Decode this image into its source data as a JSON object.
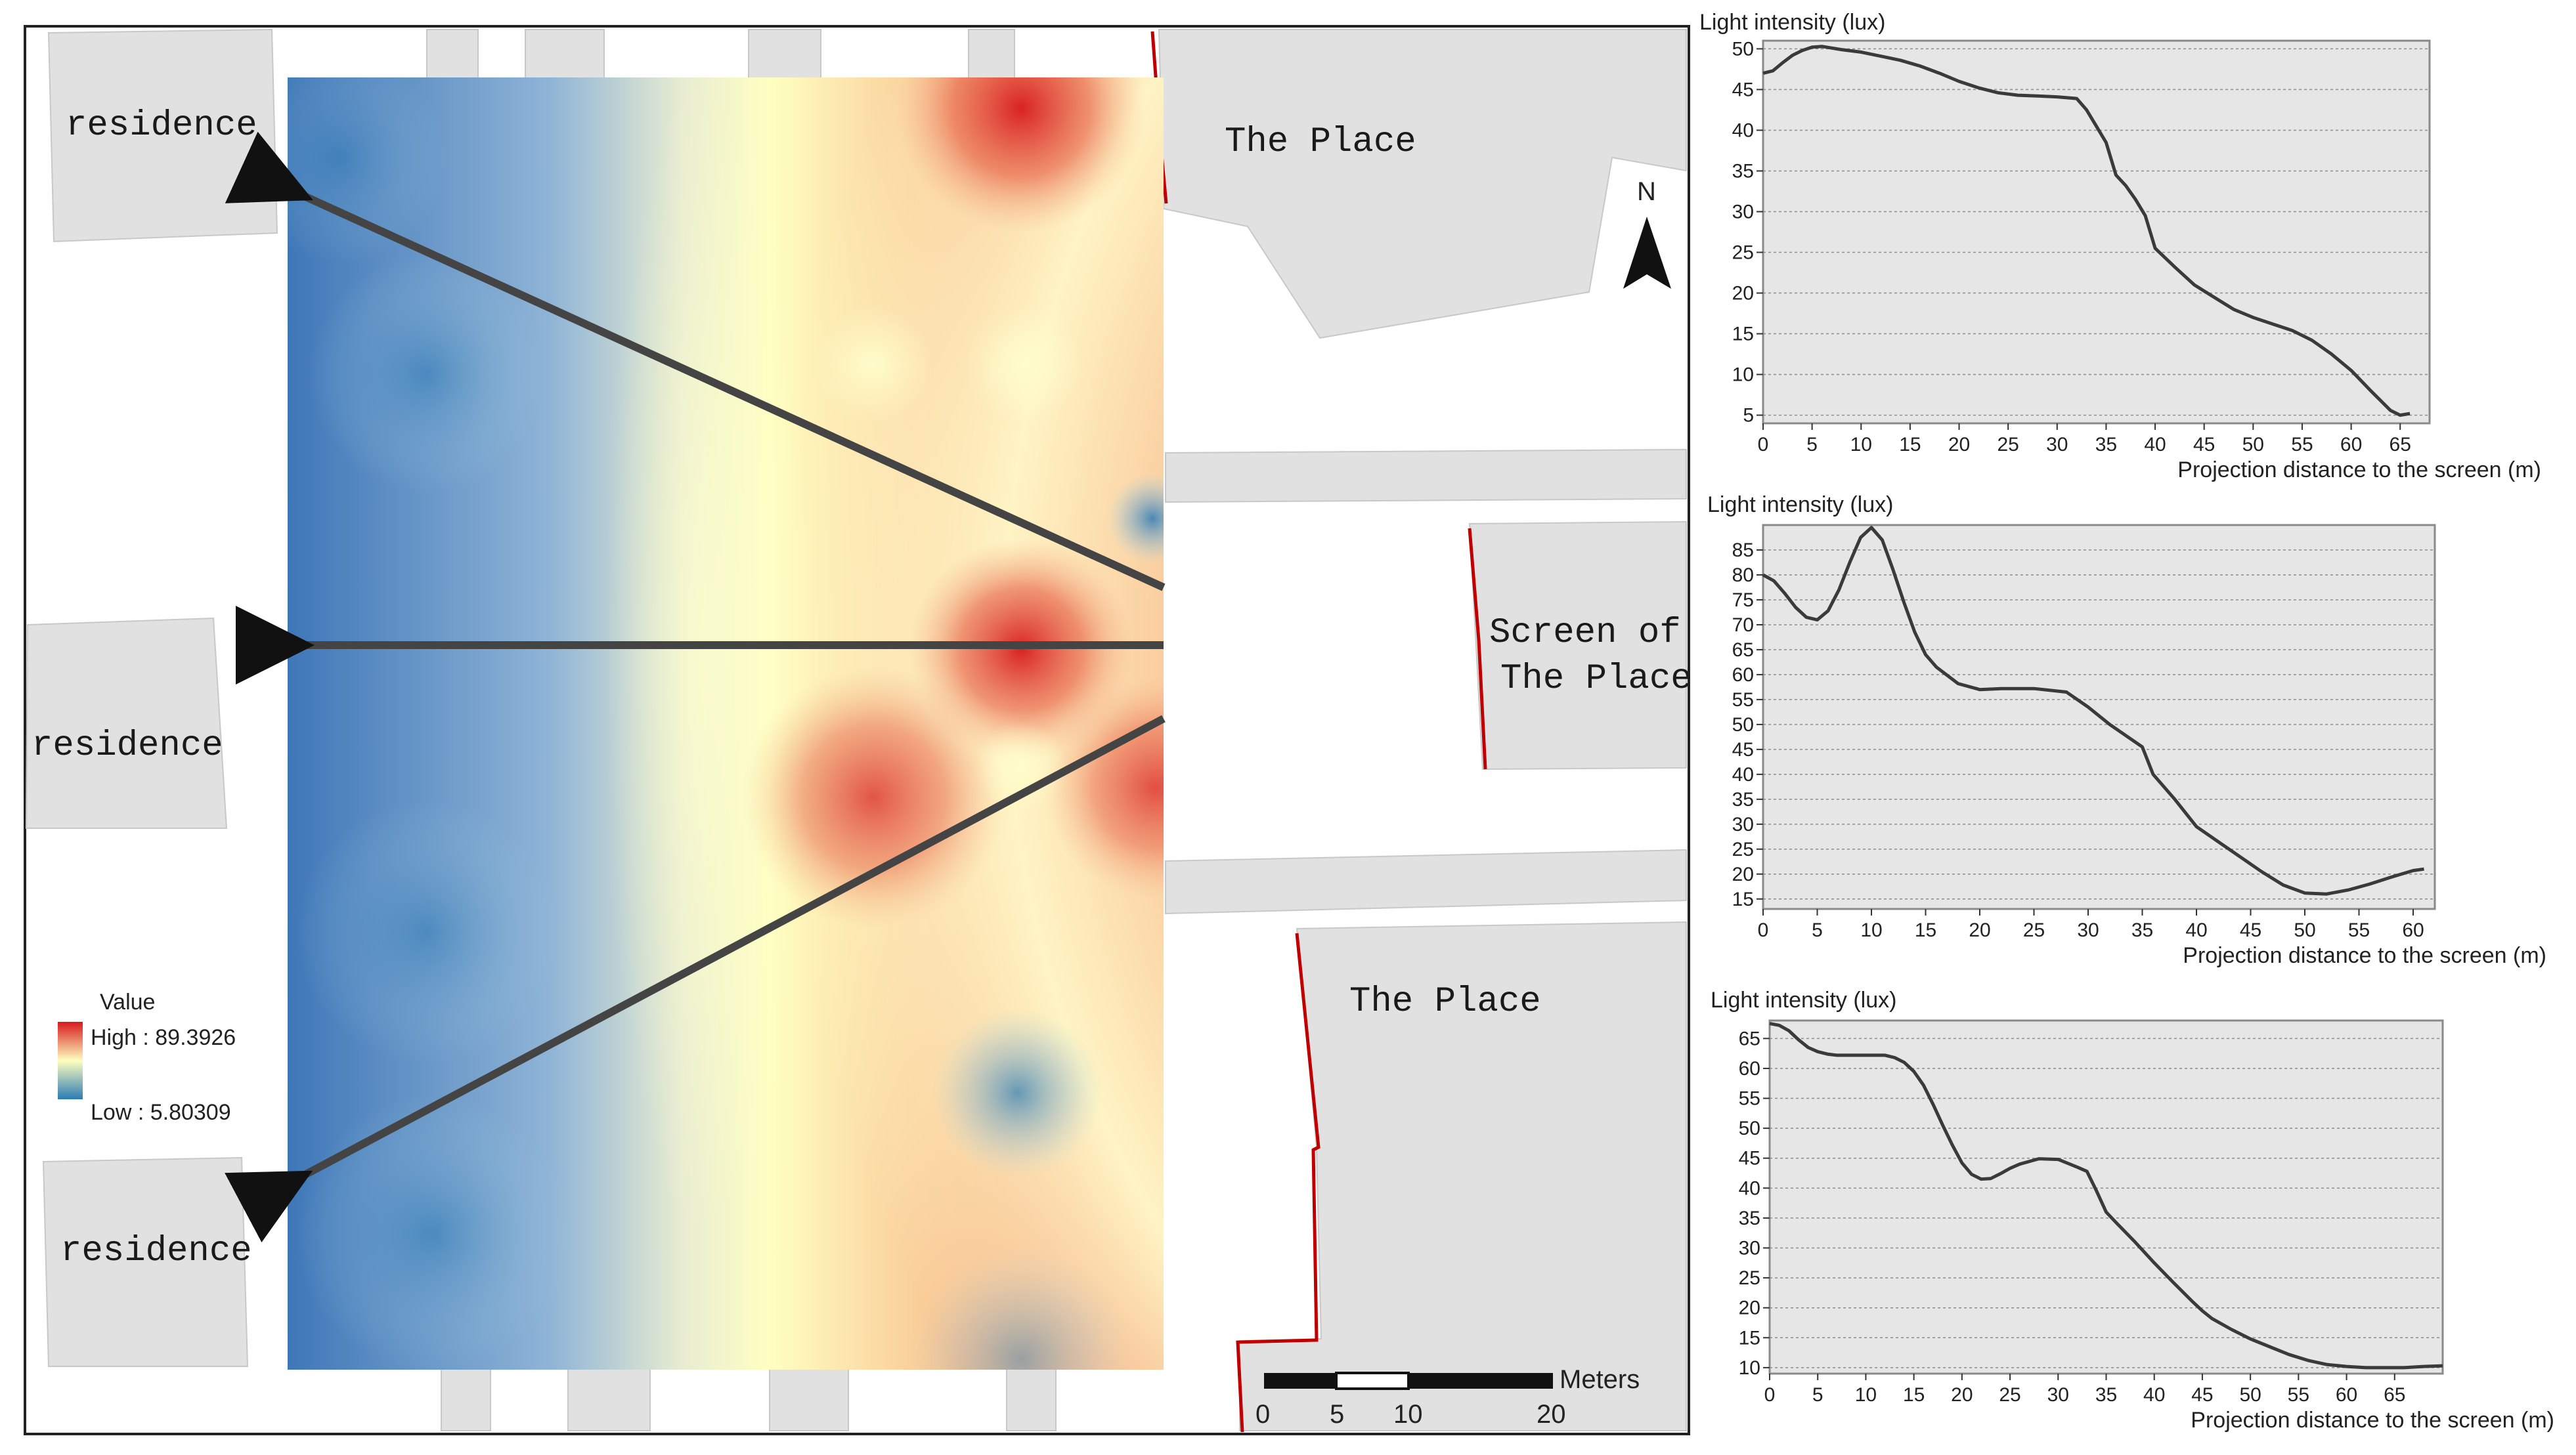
{
  "map": {
    "labels": {
      "residence_top": "residence",
      "residence_mid": "residence",
      "residence_bottom": "residence",
      "place_top": "The Place",
      "screen_line1": "Screen of",
      "screen_line2": "The Place",
      "place_bottom": "The Place"
    },
    "north": "N",
    "legend": {
      "title": "Value",
      "high": "High : 89.3926",
      "low": "Low : 5.80309"
    },
    "scalebar": {
      "unit": "Meters",
      "ticks": [
        "0",
        "5",
        "10",
        "20"
      ]
    },
    "colors": {
      "high": "#d7191c",
      "mid": "#ffffbf",
      "low": "#2c7bb6",
      "building": "#e1e1e1",
      "screen": "#c00000"
    }
  },
  "chart_data": [
    {
      "type": "line",
      "ylabel": "Light intensity (lux)",
      "xlabel": "Projection distance to the screen (m)",
      "xlim": [
        0,
        68
      ],
      "ylim": [
        4,
        51
      ],
      "x_ticks": [
        0,
        5,
        10,
        15,
        20,
        25,
        30,
        35,
        40,
        45,
        50,
        55,
        60,
        65
      ],
      "y_ticks": [
        5,
        10,
        15,
        20,
        25,
        30,
        35,
        40,
        45,
        50
      ],
      "grid": true,
      "series": [
        {
          "x": [
            0,
            1,
            2,
            3,
            4,
            5,
            6,
            7,
            8,
            10,
            12,
            14,
            16,
            18,
            20,
            22,
            24,
            26,
            28,
            30,
            32,
            33,
            34,
            35,
            36,
            37,
            38,
            39,
            40,
            42,
            44,
            46,
            48,
            50,
            52,
            54,
            56,
            58,
            60,
            62,
            64,
            65,
            66
          ],
          "y": [
            47,
            47.3,
            48.3,
            49.2,
            49.8,
            50.2,
            50.3,
            50.1,
            49.9,
            49.6,
            49.1,
            48.6,
            47.9,
            47.0,
            46.0,
            45.2,
            44.6,
            44.3,
            44.2,
            44.1,
            43.9,
            42.5,
            40.5,
            38.5,
            34.5,
            33.2,
            31.5,
            29.5,
            25.5,
            23.2,
            21.0,
            19.5,
            18.0,
            17.0,
            16.2,
            15.4,
            14.2,
            12.5,
            10.5,
            8.0,
            5.6,
            5.0,
            5.2
          ]
        }
      ]
    },
    {
      "type": "line",
      "ylabel": "Light intensity (lux)",
      "xlabel": "Projection distance to the screen (m)",
      "xlim": [
        0,
        62
      ],
      "ylim": [
        13,
        90
      ],
      "x_ticks": [
        0,
        5,
        10,
        15,
        20,
        25,
        30,
        35,
        40,
        45,
        50,
        55,
        60
      ],
      "y_ticks": [
        15,
        20,
        25,
        30,
        35,
        40,
        45,
        50,
        55,
        60,
        65,
        70,
        75,
        80,
        85
      ],
      "grid": true,
      "series": [
        {
          "x": [
            0,
            1,
            2,
            3,
            4,
            5,
            6,
            7,
            8,
            9,
            10,
            11,
            12,
            13,
            14,
            15,
            16,
            18,
            20,
            22,
            25,
            28,
            30,
            32,
            34,
            35,
            36,
            38,
            40,
            42,
            44,
            46,
            48,
            50,
            52,
            54,
            56,
            58,
            60,
            61
          ],
          "y": [
            80,
            78.8,
            76.3,
            73.5,
            71.5,
            71.0,
            72.8,
            77.0,
            82.5,
            87.5,
            89.5,
            87.0,
            81.0,
            74.5,
            68.5,
            64.0,
            61.5,
            58.2,
            57.0,
            57.2,
            57.2,
            56.5,
            53.5,
            50.0,
            47.0,
            45.5,
            40.0,
            35.0,
            29.5,
            26.5,
            23.5,
            20.5,
            17.8,
            16.2,
            16.0,
            16.8,
            18.0,
            19.4,
            20.7,
            21.0
          ]
        }
      ]
    },
    {
      "type": "line",
      "ylabel": "Light intensity (lux)",
      "xlabel": "Projection distance to the screen (m)",
      "xlim": [
        0,
        70
      ],
      "ylim": [
        9,
        68
      ],
      "x_ticks": [
        0,
        5,
        10,
        15,
        20,
        25,
        30,
        35,
        40,
        45,
        50,
        55,
        60,
        65
      ],
      "y_ticks": [
        10,
        15,
        20,
        25,
        30,
        35,
        40,
        45,
        50,
        55,
        60,
        65
      ],
      "grid": true,
      "series": [
        {
          "x": [
            0,
            1,
            2,
            3,
            4,
            5,
            6,
            7,
            8,
            10,
            12,
            13,
            14,
            15,
            16,
            17,
            18,
            19,
            20,
            21,
            22,
            23,
            24,
            25,
            26,
            28,
            30,
            32,
            33,
            34,
            35,
            36,
            38,
            40,
            42,
            44,
            45,
            46,
            48,
            50,
            52,
            54,
            56,
            58,
            60,
            62,
            64,
            66,
            68,
            70
          ],
          "y": [
            67.5,
            67.2,
            66.3,
            64.8,
            63.5,
            62.8,
            62.4,
            62.2,
            62.2,
            62.2,
            62.2,
            61.8,
            61.0,
            59.5,
            57.2,
            54.0,
            50.5,
            47.2,
            44.2,
            42.3,
            41.5,
            41.6,
            42.4,
            43.3,
            44.0,
            44.9,
            44.8,
            43.5,
            42.8,
            39.5,
            36.0,
            34.3,
            31.0,
            27.5,
            24.2,
            21.0,
            19.5,
            18.2,
            16.4,
            14.8,
            13.5,
            12.2,
            11.2,
            10.5,
            10.2,
            10.0,
            10.0,
            10.0,
            10.2,
            10.3
          ]
        }
      ]
    }
  ]
}
